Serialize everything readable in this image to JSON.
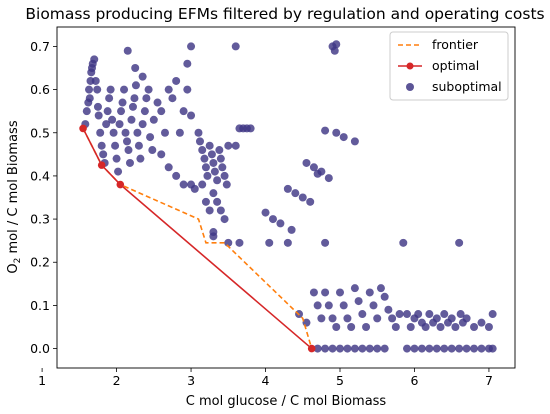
{
  "chart_data": {
    "type": "scatter",
    "title": "Biomass producing EFMs filtered by regulation and operating costs",
    "xlabel": "C mol glucose / C mol Biomass",
    "ylabel_prefix": "O",
    "ylabel_sub": "2",
    "ylabel_rest": " mol / C mol Biomass",
    "xlim": [
      1.2,
      7.35
    ],
    "ylim": [
      -0.045,
      0.745
    ],
    "xticks": [
      1,
      2,
      3,
      4,
      5,
      6,
      7
    ],
    "yticks": [
      0.0,
      0.1,
      0.2,
      0.3,
      0.4,
      0.5,
      0.6,
      0.7
    ],
    "xtick_labels": [
      "1",
      "2",
      "3",
      "4",
      "5",
      "6",
      "7"
    ],
    "ytick_labels": [
      "0.0",
      "0.1",
      "0.2",
      "0.3",
      "0.4",
      "0.5",
      "0.6",
      "0.7"
    ],
    "legend_position": "top-right",
    "colors": {
      "frontier": "#ff7f0e",
      "optimal": "#d62728",
      "suboptimal": "#3f3785"
    },
    "series": [
      {
        "name": "frontier",
        "style": "dashed-line",
        "points": [
          [
            1.55,
            0.51
          ],
          [
            1.8,
            0.425
          ],
          [
            2.05,
            0.38
          ],
          [
            3.1,
            0.3
          ],
          [
            3.2,
            0.245
          ],
          [
            3.45,
            0.245
          ],
          [
            4.5,
            0.07
          ],
          [
            4.62,
            0.0
          ]
        ]
      },
      {
        "name": "optimal",
        "style": "line-markers",
        "points": [
          [
            1.55,
            0.51
          ],
          [
            1.8,
            0.425
          ],
          [
            2.05,
            0.38
          ],
          [
            4.62,
            0.0
          ]
        ]
      },
      {
        "name": "suboptimal",
        "style": "markers",
        "points": [
          [
            1.58,
            0.52
          ],
          [
            1.6,
            0.55
          ],
          [
            1.62,
            0.57
          ],
          [
            1.63,
            0.6
          ],
          [
            1.64,
            0.58
          ],
          [
            1.65,
            0.62
          ],
          [
            1.66,
            0.64
          ],
          [
            1.67,
            0.65
          ],
          [
            1.68,
            0.66
          ],
          [
            1.7,
            0.67
          ],
          [
            1.72,
            0.62
          ],
          [
            1.74,
            0.6
          ],
          [
            1.75,
            0.56
          ],
          [
            1.76,
            0.54
          ],
          [
            1.78,
            0.5
          ],
          [
            1.8,
            0.47
          ],
          [
            1.82,
            0.45
          ],
          [
            1.84,
            0.43
          ],
          [
            1.86,
            0.52
          ],
          [
            1.88,
            0.55
          ],
          [
            1.9,
            0.58
          ],
          [
            1.92,
            0.6
          ],
          [
            1.94,
            0.53
          ],
          [
            1.96,
            0.5
          ],
          [
            1.98,
            0.47
          ],
          [
            2.0,
            0.44
          ],
          [
            2.02,
            0.41
          ],
          [
            2.04,
            0.52
          ],
          [
            2.06,
            0.55
          ],
          [
            2.08,
            0.57
          ],
          [
            2.1,
            0.6
          ],
          [
            2.12,
            0.5
          ],
          [
            2.14,
            0.48
          ],
          [
            2.16,
            0.46
          ],
          [
            2.18,
            0.43
          ],
          [
            2.2,
            0.53
          ],
          [
            2.22,
            0.56
          ],
          [
            2.24,
            0.58
          ],
          [
            2.26,
            0.61
          ],
          [
            2.28,
            0.5
          ],
          [
            2.3,
            0.47
          ],
          [
            2.32,
            0.44
          ],
          [
            2.35,
            0.52
          ],
          [
            2.38,
            0.55
          ],
          [
            2.4,
            0.58
          ],
          [
            2.43,
            0.6
          ],
          [
            2.45,
            0.49
          ],
          [
            2.48,
            0.46
          ],
          [
            2.5,
            0.53
          ],
          [
            2.55,
            0.57
          ],
          [
            2.6,
            0.55
          ],
          [
            2.65,
            0.5
          ],
          [
            2.7,
            0.6
          ],
          [
            2.75,
            0.58
          ],
          [
            2.8,
            0.62
          ],
          [
            2.85,
            0.5
          ],
          [
            2.9,
            0.55
          ],
          [
            2.95,
            0.6
          ],
          [
            2.15,
            0.69
          ],
          [
            2.25,
            0.65
          ],
          [
            2.35,
            0.63
          ],
          [
            2.6,
            0.45
          ],
          [
            2.7,
            0.42
          ],
          [
            2.8,
            0.4
          ],
          [
            2.9,
            0.38
          ],
          [
            3.0,
            0.54
          ],
          [
            3.0,
            0.38
          ],
          [
            3.05,
            0.37
          ],
          [
            2.95,
            0.66
          ],
          [
            3.0,
            0.7
          ],
          [
            3.1,
            0.5
          ],
          [
            3.12,
            0.48
          ],
          [
            3.15,
            0.46
          ],
          [
            3.18,
            0.44
          ],
          [
            3.2,
            0.42
          ],
          [
            3.22,
            0.4
          ],
          [
            3.25,
            0.47
          ],
          [
            3.28,
            0.45
          ],
          [
            3.3,
            0.43
          ],
          [
            3.32,
            0.41
          ],
          [
            3.35,
            0.39
          ],
          [
            3.38,
            0.46
          ],
          [
            3.4,
            0.44
          ],
          [
            3.42,
            0.42
          ],
          [
            3.45,
            0.4
          ],
          [
            3.48,
            0.38
          ],
          [
            3.5,
            0.47
          ],
          [
            3.3,
            0.36
          ],
          [
            3.35,
            0.34
          ],
          [
            3.4,
            0.32
          ],
          [
            3.45,
            0.3
          ],
          [
            3.3,
            0.27
          ],
          [
            3.25,
            0.32
          ],
          [
            3.2,
            0.34
          ],
          [
            3.15,
            0.38
          ],
          [
            3.6,
            0.47
          ],
          [
            3.65,
            0.51
          ],
          [
            3.7,
            0.51
          ],
          [
            3.75,
            0.51
          ],
          [
            3.8,
            0.51
          ],
          [
            3.6,
            0.7
          ],
          [
            3.3,
            0.26
          ],
          [
            3.5,
            0.245
          ],
          [
            3.65,
            0.245
          ],
          [
            4.0,
            0.315
          ],
          [
            4.05,
            0.245
          ],
          [
            4.1,
            0.3
          ],
          [
            4.2,
            0.29
          ],
          [
            4.3,
            0.37
          ],
          [
            4.3,
            0.245
          ],
          [
            4.35,
            0.275
          ],
          [
            4.4,
            0.36
          ],
          [
            4.5,
            0.35
          ],
          [
            4.55,
            0.43
          ],
          [
            4.6,
            0.34
          ],
          [
            4.65,
            0.42
          ],
          [
            4.7,
            0.405
          ],
          [
            4.75,
            0.41
          ],
          [
            4.8,
            0.245
          ],
          [
            4.85,
            0.395
          ],
          [
            4.8,
            0.505
          ],
          [
            4.95,
            0.5
          ],
          [
            5.05,
            0.49
          ],
          [
            5.2,
            0.48
          ],
          [
            4.9,
            0.7
          ],
          [
            4.93,
            0.69
          ],
          [
            4.95,
            0.705
          ],
          [
            4.45,
            0.08
          ],
          [
            4.55,
            0.06
          ],
          [
            4.65,
            0.13
          ],
          [
            4.7,
            0.1
          ],
          [
            4.75,
            0.07
          ],
          [
            4.8,
            0.13
          ],
          [
            4.85,
            0.1
          ],
          [
            4.9,
            0.07
          ],
          [
            4.95,
            0.05
          ],
          [
            5.0,
            0.13
          ],
          [
            5.05,
            0.1
          ],
          [
            5.1,
            0.07
          ],
          [
            5.15,
            0.05
          ],
          [
            5.2,
            0.14
          ],
          [
            5.25,
            0.11
          ],
          [
            5.3,
            0.08
          ],
          [
            5.35,
            0.05
          ],
          [
            5.4,
            0.13
          ],
          [
            5.45,
            0.1
          ],
          [
            5.5,
            0.07
          ],
          [
            5.55,
            0.14
          ],
          [
            5.6,
            0.12
          ],
          [
            5.65,
            0.09
          ],
          [
            5.7,
            0.07
          ],
          [
            5.75,
            0.05
          ],
          [
            5.8,
            0.08
          ],
          [
            5.85,
            0.245
          ],
          [
            5.9,
            0.08
          ],
          [
            5.95,
            0.05
          ],
          [
            6.0,
            0.07
          ],
          [
            6.05,
            0.08
          ],
          [
            6.1,
            0.06
          ],
          [
            6.15,
            0.05
          ],
          [
            6.2,
            0.08
          ],
          [
            6.25,
            0.06
          ],
          [
            6.3,
            0.07
          ],
          [
            6.35,
            0.05
          ],
          [
            6.4,
            0.08
          ],
          [
            6.45,
            0.06
          ],
          [
            6.5,
            0.07
          ],
          [
            6.55,
            0.05
          ],
          [
            6.6,
            0.245
          ],
          [
            6.62,
            0.08
          ],
          [
            6.65,
            0.06
          ],
          [
            6.7,
            0.07
          ],
          [
            6.8,
            0.05
          ],
          [
            6.9,
            0.06
          ],
          [
            7.0,
            0.05
          ],
          [
            7.05,
            0.08
          ],
          [
            4.7,
            0.0
          ],
          [
            4.8,
            0.0
          ],
          [
            4.9,
            0.0
          ],
          [
            5.0,
            0.0
          ],
          [
            5.1,
            0.0
          ],
          [
            5.2,
            0.0
          ],
          [
            5.3,
            0.0
          ],
          [
            5.4,
            0.0
          ],
          [
            5.5,
            0.0
          ],
          [
            5.6,
            0.0
          ],
          [
            5.9,
            0.0
          ],
          [
            6.0,
            0.0
          ],
          [
            6.1,
            0.0
          ],
          [
            6.2,
            0.0
          ],
          [
            6.3,
            0.0
          ],
          [
            6.4,
            0.0
          ],
          [
            6.5,
            0.0
          ],
          [
            6.6,
            0.0
          ],
          [
            6.7,
            0.0
          ],
          [
            6.8,
            0.0
          ],
          [
            6.9,
            0.0
          ],
          [
            7.0,
            0.0
          ],
          [
            7.05,
            0.0
          ]
        ]
      }
    ]
  }
}
